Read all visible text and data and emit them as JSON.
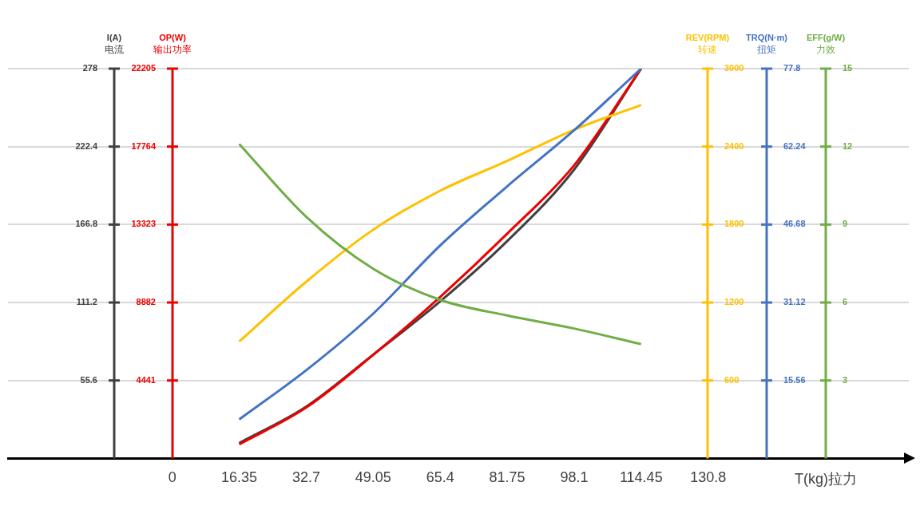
{
  "chart_data": [
    {
      "type": "line",
      "x": [
        16.35,
        32.7,
        49.05,
        65.4,
        81.75,
        98.1,
        114.45
      ],
      "xlim": [
        -40.1,
        179.8
      ],
      "xticks": [
        0,
        16.35,
        32.7,
        49.05,
        65.4,
        81.75,
        98.1,
        114.45,
        130.8
      ],
      "xlabel": "T(kg)拉力",
      "ylabel": "I(A)\n电流",
      "ylim": [
        0,
        278
      ],
      "yticks": [
        55.6,
        111.2,
        166.8,
        222.4,
        278
      ],
      "y2label": "OP(W)\n输出功率",
      "y2lim": [
        0,
        22205
      ],
      "y2ticks": [
        4441,
        8882,
        13323,
        17764,
        22205
      ],
      "y3label": "REV(RPM)\n转速",
      "y3lim": [
        0,
        3000
      ],
      "y3ticks": [
        600,
        1200,
        1800,
        2400,
        3000
      ],
      "grid": "y",
      "legend": false,
      "marker": "none",
      "line_style": "solid",
      "series": [
        {
          "axis": "y",
          "color": "#404040",
          "values": [
            11,
            37,
            74,
            112,
            155,
            206,
            278
          ]
        },
        {
          "axis": "y2",
          "color": "#ee0000",
          "values": [
            800,
            2900,
            5900,
            9200,
            12800,
            16700,
            22205
          ]
        },
        {
          "axis": "y3",
          "color": "#ffc000",
          "values": [
            900,
            1360,
            1760,
            2060,
            2290,
            2530,
            2720
          ]
        }
      ]
    },
    {
      "type": "line",
      "x": [
        16.35,
        32.7,
        49.05,
        65.4,
        81.75,
        98.1,
        114.45
      ],
      "xlim": [
        -40.1,
        179.8
      ],
      "tick_labels": "y",
      "ylabel": "TRQ(N·m)\n扭矩",
      "ylim": [
        0,
        77.8
      ],
      "yticks": [
        15.56,
        31.12,
        46.68,
        62.24,
        77.8
      ],
      "y2label": "EFF(g/W)\n力效",
      "y2lim": [
        0,
        15
      ],
      "y2ticks": [
        3,
        6,
        9,
        12,
        15
      ],
      "legend": false,
      "marker": "none",
      "line_style": "solid",
      "series": [
        {
          "axis": "y",
          "color": "#4472c4",
          "values": [
            7.8,
            17.6,
            28.9,
            42.5,
            54.3,
            65.5,
            77.8
          ]
        },
        {
          "axis": "y2",
          "color": "#70ad47",
          "values": [
            12.1,
            9.3,
            7.3,
            6.1,
            5.5,
            5,
            4.4
          ]
        }
      ]
    }
  ]
}
